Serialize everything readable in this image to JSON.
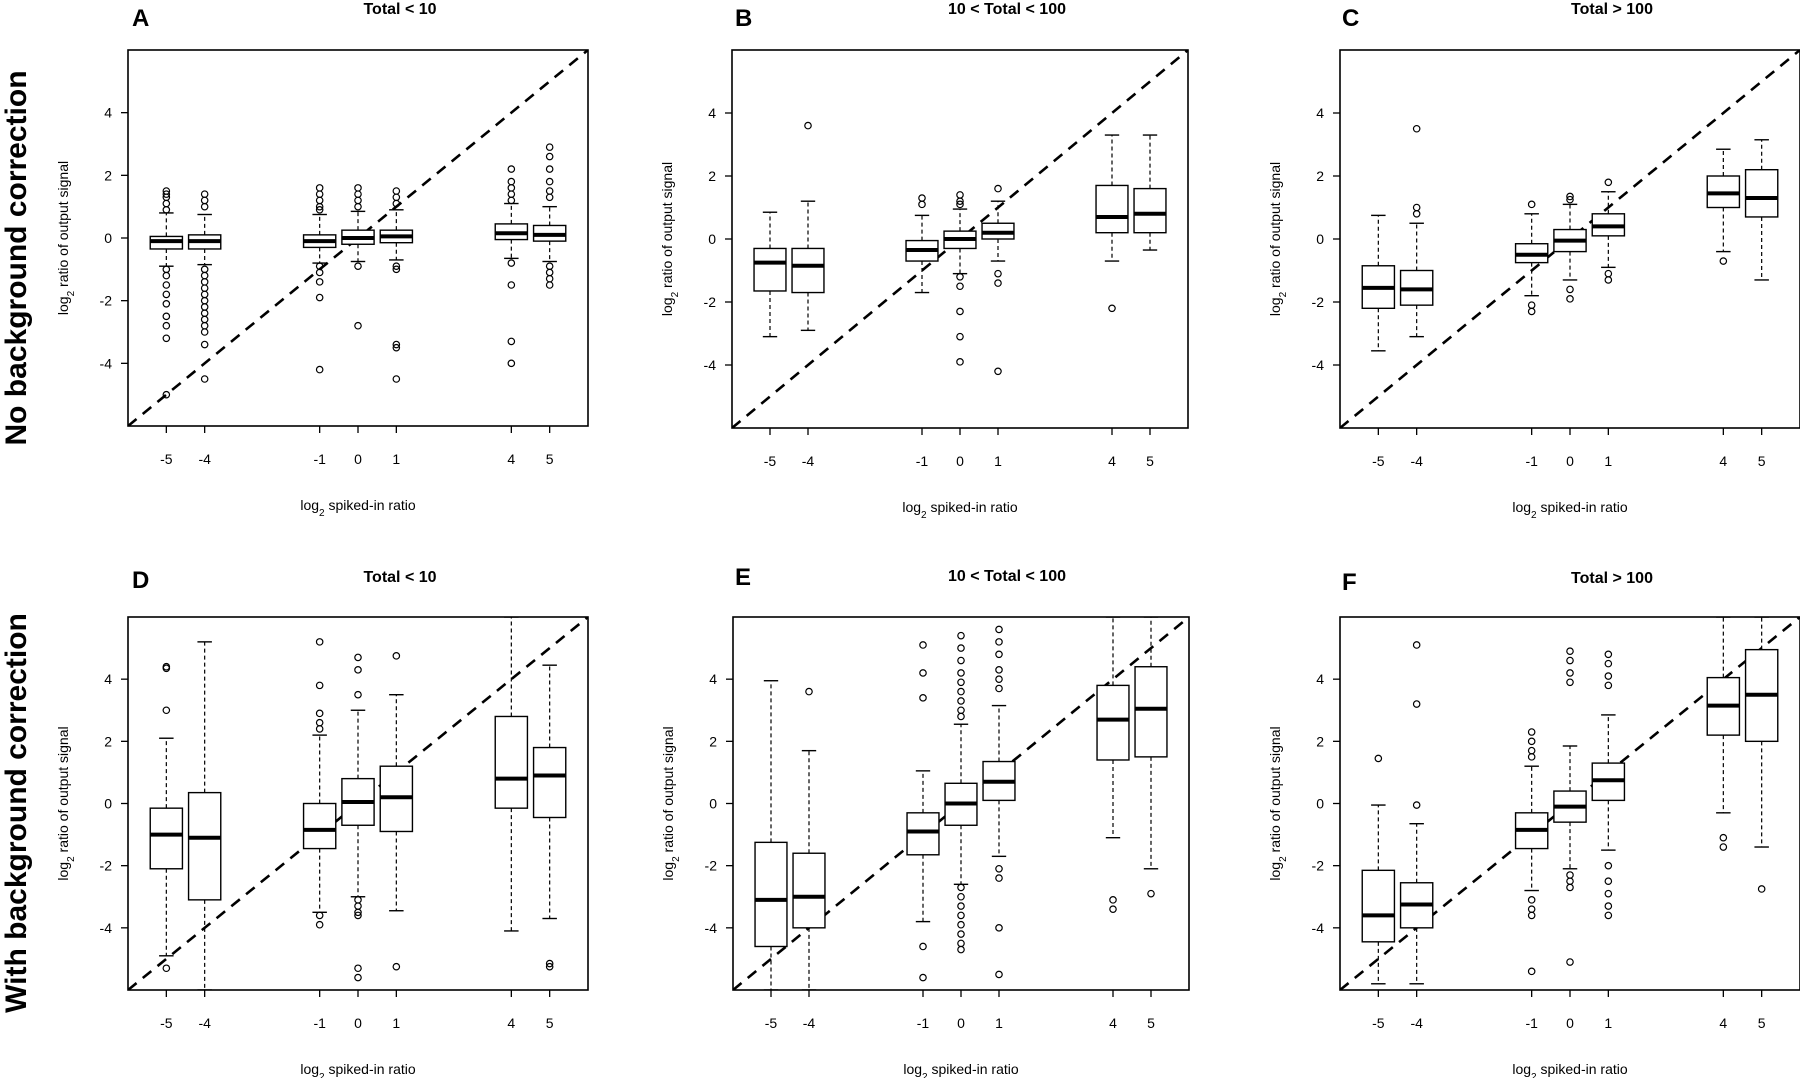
{
  "row_labels": [
    "No background correction",
    "With background correction"
  ],
  "chart_data": [
    {
      "type": "boxplot",
      "letter": "A",
      "title": "Total < 10",
      "xlabel": "log₂ spiked-in ratio",
      "ylabel": "log₂ ratio of output signal",
      "xlim": [
        -6,
        6
      ],
      "ylim": [
        -6,
        6
      ],
      "yticks": [
        -4,
        -2,
        0,
        2,
        4
      ],
      "categories": [
        -5,
        -4,
        -1,
        0,
        1,
        4,
        5
      ],
      "reference_line": "y = x (dashed)",
      "boxes": [
        {
          "x": -5,
          "whisker_low": -0.9,
          "q1": -0.35,
          "median": -0.1,
          "q3": 0.05,
          "whisker_high": 0.8,
          "outliers": [
            1.5,
            1.4,
            1.3,
            1.1,
            0.9,
            -1.0,
            -1.2,
            -1.5,
            -1.8,
            -2.1,
            -2.5,
            -2.8,
            -3.2,
            -5.0
          ]
        },
        {
          "x": -4,
          "whisker_low": -0.85,
          "q1": -0.35,
          "median": -0.1,
          "q3": 0.1,
          "whisker_high": 0.75,
          "outliers": [
            1.4,
            1.2,
            1.0,
            -1.0,
            -1.2,
            -1.4,
            -1.6,
            -1.8,
            -2.0,
            -2.2,
            -2.4,
            -2.6,
            -2.8,
            -3.0,
            -3.4,
            -4.5
          ]
        },
        {
          "x": -1,
          "whisker_low": -0.8,
          "q1": -0.3,
          "median": -0.1,
          "q3": 0.1,
          "whisker_high": 0.75,
          "outliers": [
            1.6,
            1.4,
            1.2,
            1.0,
            0.9,
            -0.9,
            -1.1,
            -1.4,
            -1.9,
            -4.2
          ]
        },
        {
          "x": 0,
          "whisker_low": -0.75,
          "q1": -0.2,
          "median": 0.0,
          "q3": 0.25,
          "whisker_high": 0.85,
          "outliers": [
            1.6,
            1.4,
            1.2,
            1.0,
            -0.9,
            -2.8
          ]
        },
        {
          "x": 1,
          "whisker_low": -0.7,
          "q1": -0.15,
          "median": 0.05,
          "q3": 0.25,
          "whisker_high": 0.9,
          "outliers": [
            1.5,
            1.3,
            1.1,
            -0.9,
            -1.0,
            -3.4,
            -3.5,
            -4.5
          ]
        },
        {
          "x": 4,
          "whisker_low": -0.65,
          "q1": -0.05,
          "median": 0.15,
          "q3": 0.45,
          "whisker_high": 1.1,
          "outliers": [
            2.2,
            1.8,
            1.6,
            1.4,
            1.2,
            -0.8,
            -1.5,
            -3.3,
            -4.0
          ]
        },
        {
          "x": 5,
          "whisker_low": -0.75,
          "q1": -0.1,
          "median": 0.1,
          "q3": 0.4,
          "whisker_high": 1.0,
          "outliers": [
            2.9,
            2.6,
            2.2,
            1.8,
            1.5,
            1.3,
            -0.9,
            -1.1,
            -1.3,
            -1.5
          ]
        }
      ]
    },
    {
      "type": "boxplot",
      "letter": "B",
      "title": "10 < Total < 100",
      "xlabel": "log₂ spiked-in ratio",
      "ylabel": "log₂ ratio of output signal",
      "xlim": [
        -6,
        6
      ],
      "ylim": [
        -6,
        6
      ],
      "yticks": [
        -4,
        -2,
        0,
        2,
        4
      ],
      "categories": [
        -5,
        -4,
        -1,
        0,
        1,
        4,
        5
      ],
      "reference_line": "y = x (dashed)",
      "boxes": [
        {
          "x": -5,
          "whisker_low": -3.1,
          "q1": -1.65,
          "median": -0.75,
          "q3": -0.3,
          "whisker_high": 0.85,
          "outliers": []
        },
        {
          "x": -4,
          "whisker_low": -2.9,
          "q1": -1.7,
          "median": -0.85,
          "q3": -0.3,
          "whisker_high": 1.2,
          "outliers": [
            3.6
          ]
        },
        {
          "x": -1,
          "whisker_low": -1.7,
          "q1": -0.7,
          "median": -0.35,
          "q3": -0.05,
          "whisker_high": 0.75,
          "outliers": [
            1.3,
            1.1
          ]
        },
        {
          "x": 0,
          "whisker_low": -1.1,
          "q1": -0.3,
          "median": 0.0,
          "q3": 0.25,
          "whisker_high": 0.95,
          "outliers": [
            1.4,
            1.2,
            1.1,
            -1.2,
            -1.5,
            -2.3,
            -3.1,
            -3.9
          ]
        },
        {
          "x": 1,
          "whisker_low": -0.7,
          "q1": 0.0,
          "median": 0.2,
          "q3": 0.5,
          "whisker_high": 1.2,
          "outliers": [
            1.6,
            -1.1,
            -1.4,
            -4.2
          ]
        },
        {
          "x": 4,
          "whisker_low": -0.7,
          "q1": 0.2,
          "median": 0.7,
          "q3": 1.7,
          "whisker_high": 3.3,
          "outliers": [
            -2.2
          ]
        },
        {
          "x": 5,
          "whisker_low": -0.35,
          "q1": 0.2,
          "median": 0.8,
          "q3": 1.6,
          "whisker_high": 3.3,
          "outliers": []
        }
      ]
    },
    {
      "type": "boxplot",
      "letter": "C",
      "title": "Total > 100",
      "xlabel": "log₂ spiked-in ratio",
      "ylabel": "log₂ ratio of output signal",
      "xlim": [
        -6,
        6
      ],
      "ylim": [
        -6,
        6
      ],
      "yticks": [
        -4,
        -2,
        0,
        2,
        4
      ],
      "categories": [
        -5,
        -4,
        -1,
        0,
        1,
        4,
        5
      ],
      "reference_line": "y = x (dashed)",
      "boxes": [
        {
          "x": -5,
          "whisker_low": -3.55,
          "q1": -2.2,
          "median": -1.55,
          "q3": -0.85,
          "whisker_high": 0.75,
          "outliers": []
        },
        {
          "x": -4,
          "whisker_low": -3.1,
          "q1": -2.1,
          "median": -1.6,
          "q3": -1.0,
          "whisker_high": 0.5,
          "outliers": [
            3.5,
            1.0,
            0.8
          ]
        },
        {
          "x": -1,
          "whisker_low": -1.8,
          "q1": -0.75,
          "median": -0.5,
          "q3": -0.15,
          "whisker_high": 0.8,
          "outliers": [
            1.1,
            -2.1,
            -2.3
          ]
        },
        {
          "x": 0,
          "whisker_low": -1.3,
          "q1": -0.4,
          "median": -0.05,
          "q3": 0.3,
          "whisker_high": 1.1,
          "outliers": [
            1.35,
            1.25,
            -1.6,
            -1.9
          ]
        },
        {
          "x": 1,
          "whisker_low": -0.9,
          "q1": 0.1,
          "median": 0.4,
          "q3": 0.8,
          "whisker_high": 1.5,
          "outliers": [
            1.8,
            -1.1,
            -1.3
          ]
        },
        {
          "x": 4,
          "whisker_low": -0.4,
          "q1": 1.0,
          "median": 1.45,
          "q3": 2.0,
          "whisker_high": 2.85,
          "outliers": [
            -0.7
          ]
        },
        {
          "x": 5,
          "whisker_low": -1.3,
          "q1": 0.7,
          "median": 1.3,
          "q3": 2.2,
          "whisker_high": 3.15,
          "outliers": []
        }
      ]
    },
    {
      "type": "boxplot",
      "letter": "D",
      "title": "Total < 10",
      "xlabel": "log₂ spiked-in ratio",
      "ylabel": "log₂ ratio of output signal",
      "xlim": [
        -6,
        6
      ],
      "ylim": [
        -6,
        6
      ],
      "yticks": [
        -4,
        -2,
        0,
        2,
        4
      ],
      "categories": [
        -5,
        -4,
        -1,
        0,
        1,
        4,
        5
      ],
      "reference_line": "y = x (dashed)",
      "boxes": [
        {
          "x": -5,
          "whisker_low": -4.9,
          "q1": -2.1,
          "median": -1.0,
          "q3": -0.15,
          "whisker_high": 2.1,
          "outliers": [
            4.4,
            4.35,
            3.0,
            -5.3
          ]
        },
        {
          "x": -4,
          "whisker_low": -6.0,
          "q1": -3.1,
          "median": -1.1,
          "q3": 0.35,
          "whisker_high": 5.2,
          "outliers": []
        },
        {
          "x": -1,
          "whisker_low": -3.5,
          "q1": -1.45,
          "median": -0.85,
          "q3": 0.0,
          "whisker_high": 2.2,
          "outliers": [
            5.2,
            3.8,
            2.9,
            2.6,
            2.4,
            -3.6,
            -3.9
          ]
        },
        {
          "x": 0,
          "whisker_low": -3.0,
          "q1": -0.7,
          "median": 0.05,
          "q3": 0.8,
          "whisker_high": 3.0,
          "outliers": [
            4.7,
            4.3,
            3.5,
            -3.1,
            -3.3,
            -3.5,
            -3.6,
            -5.3,
            -5.6
          ]
        },
        {
          "x": 1,
          "whisker_low": -3.45,
          "q1": -0.9,
          "median": 0.2,
          "q3": 1.2,
          "whisker_high": 3.5,
          "outliers": [
            4.75,
            -5.25
          ]
        },
        {
          "x": 4,
          "whisker_low": -4.1,
          "q1": -0.15,
          "median": 0.8,
          "q3": 2.8,
          "whisker_high": 6.0,
          "outliers": []
        },
        {
          "x": 5,
          "whisker_low": -3.7,
          "q1": -0.45,
          "median": 0.9,
          "q3": 1.8,
          "whisker_high": 4.45,
          "outliers": [
            -5.15,
            -5.25
          ]
        }
      ]
    },
    {
      "type": "boxplot",
      "letter": "E",
      "title": "10 < Total < 100",
      "xlabel": "log₂ spiked-in ratio",
      "ylabel": "log₂ ratio of output signal",
      "xlim": [
        -6,
        6
      ],
      "ylim": [
        -6,
        6
      ],
      "yticks": [
        -4,
        -2,
        0,
        2,
        4
      ],
      "categories": [
        -5,
        -4,
        -1,
        0,
        1,
        4,
        5
      ],
      "reference_line": "y = x (dashed)",
      "boxes": [
        {
          "x": -5,
          "whisker_low": -6.0,
          "q1": -4.6,
          "median": -3.1,
          "q3": -1.25,
          "whisker_high": 3.95,
          "outliers": []
        },
        {
          "x": -4,
          "whisker_low": -6.0,
          "q1": -4.0,
          "median": -3.0,
          "q3": -1.6,
          "whisker_high": 1.7,
          "outliers": [
            3.6
          ]
        },
        {
          "x": -1,
          "whisker_low": -3.8,
          "q1": -1.65,
          "median": -0.9,
          "q3": -0.3,
          "whisker_high": 1.05,
          "outliers": [
            5.1,
            4.2,
            3.4,
            -4.6,
            -5.6
          ]
        },
        {
          "x": 0,
          "whisker_low": -2.6,
          "q1": -0.7,
          "median": 0.0,
          "q3": 0.65,
          "whisker_high": 2.55,
          "outliers": [
            5.4,
            5.0,
            4.6,
            4.2,
            3.9,
            3.6,
            3.3,
            3.0,
            2.8,
            -2.7,
            -3.0,
            -3.3,
            -3.6,
            -3.9,
            -4.2,
            -4.5,
            -4.7
          ]
        },
        {
          "x": 1,
          "whisker_low": -1.7,
          "q1": 0.1,
          "median": 0.7,
          "q3": 1.35,
          "whisker_high": 3.15,
          "outliers": [
            5.6,
            5.2,
            4.8,
            4.3,
            4.0,
            3.7,
            -2.1,
            -2.4,
            -4.0,
            -5.5
          ]
        },
        {
          "x": 4,
          "whisker_low": -1.1,
          "q1": 1.4,
          "median": 2.7,
          "q3": 3.8,
          "whisker_high": 6.0,
          "outliers": [
            -3.1,
            -3.4
          ]
        },
        {
          "x": 5,
          "whisker_low": -2.1,
          "q1": 1.5,
          "median": 3.05,
          "q3": 4.4,
          "whisker_high": 6.0,
          "outliers": [
            -2.9
          ]
        }
      ]
    },
    {
      "type": "boxplot",
      "letter": "F",
      "title": "Total > 100",
      "xlabel": "log₂ spiked-in ratio",
      "ylabel": "log₂ ratio of output signal",
      "xlim": [
        -6,
        6
      ],
      "ylim": [
        -6,
        6
      ],
      "yticks": [
        -4,
        -2,
        0,
        2,
        4
      ],
      "categories": [
        -5,
        -4,
        -1,
        0,
        1,
        4,
        5
      ],
      "reference_line": "y = x (dashed)",
      "boxes": [
        {
          "x": -5,
          "whisker_low": -5.8,
          "q1": -4.45,
          "median": -3.6,
          "q3": -2.15,
          "whisker_high": -0.05,
          "outliers": [
            1.45
          ]
        },
        {
          "x": -4,
          "whisker_low": -5.8,
          "q1": -4.0,
          "median": -3.25,
          "q3": -2.55,
          "whisker_high": -0.65,
          "outliers": [
            5.1,
            3.2,
            -0.05
          ]
        },
        {
          "x": -1,
          "whisker_low": -2.8,
          "q1": -1.45,
          "median": -0.85,
          "q3": -0.3,
          "whisker_high": 1.2,
          "outliers": [
            2.3,
            2.0,
            1.7,
            1.5,
            -3.1,
            -3.4,
            -3.6,
            -5.4
          ]
        },
        {
          "x": 0,
          "whisker_low": -2.1,
          "q1": -0.6,
          "median": -0.1,
          "q3": 0.4,
          "whisker_high": 1.85,
          "outliers": [
            4.9,
            4.6,
            4.2,
            3.9,
            -2.3,
            -2.5,
            -2.7,
            -5.1
          ]
        },
        {
          "x": 1,
          "whisker_low": -1.5,
          "q1": 0.1,
          "median": 0.75,
          "q3": 1.3,
          "whisker_high": 2.85,
          "outliers": [
            4.8,
            4.5,
            4.1,
            3.8,
            -2.0,
            -2.5,
            -2.9,
            -3.3,
            -3.6
          ]
        },
        {
          "x": 4,
          "whisker_low": -0.3,
          "q1": 2.2,
          "median": 3.15,
          "q3": 4.05,
          "whisker_high": 6.0,
          "outliers": [
            -1.1,
            -1.4
          ]
        },
        {
          "x": 5,
          "whisker_low": -1.4,
          "q1": 2.0,
          "median": 3.5,
          "q3": 4.95,
          "whisker_high": 6.0,
          "outliers": [
            -2.75
          ]
        }
      ]
    }
  ]
}
